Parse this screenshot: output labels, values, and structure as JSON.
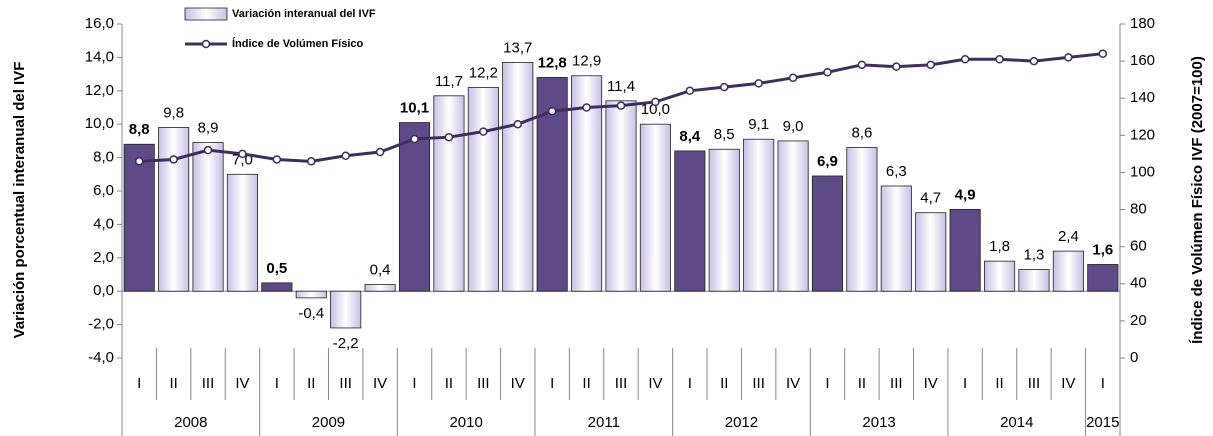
{
  "chart_data": {
    "type": "bar",
    "y_label": "Variación porcentual interanual del IVF",
    "y2_label": "Índice de Volúmen Físico IVF (2007=100)",
    "groups": [
      {
        "name": "2008",
        "categories": [
          "I",
          "II",
          "III",
          "IV"
        ]
      },
      {
        "name": "2009",
        "categories": [
          "I",
          "II",
          "III",
          "IV"
        ]
      },
      {
        "name": "2010",
        "categories": [
          "I",
          "II",
          "III",
          "IV"
        ]
      },
      {
        "name": "2011",
        "categories": [
          "I",
          "II",
          "III",
          "IV"
        ]
      },
      {
        "name": "2012",
        "categories": [
          "I",
          "II",
          "III",
          "IV"
        ]
      },
      {
        "name": "2013",
        "categories": [
          "I",
          "II",
          "III",
          "IV"
        ]
      },
      {
        "name": "2014",
        "categories": [
          "I",
          "II",
          "III",
          "IV"
        ]
      },
      {
        "name": "2015",
        "categories": [
          "I"
        ]
      }
    ],
    "series": [
      {
        "name": "Variación interanual del IVF",
        "type": "bar",
        "colors": [
          "#5e4a87",
          "#c9c0e6",
          "#c9c0e6",
          "#c9c0e6",
          "#5e4a87",
          "#c9c0e6",
          "#c9c0e6",
          "#c9c0e6",
          "#5e4a87",
          "#c9c0e6",
          "#c9c0e6",
          "#c9c0e6",
          "#5e4a87",
          "#c9c0e6",
          "#c9c0e6",
          "#c9c0e6",
          "#5e4a87",
          "#c9c0e6",
          "#c9c0e6",
          "#c9c0e6",
          "#5e4a87",
          "#c9c0e6",
          "#c9c0e6",
          "#c9c0e6",
          "#5e4a87",
          "#c9c0e6",
          "#c9c0e6",
          "#c9c0e6",
          "#5e4a87"
        ],
        "values": [
          8.8,
          9.8,
          8.9,
          7.0,
          0.5,
          -0.4,
          -2.2,
          0.4,
          10.1,
          11.7,
          12.2,
          13.7,
          12.8,
          12.9,
          11.4,
          10.0,
          8.4,
          8.5,
          9.1,
          9.0,
          6.9,
          8.6,
          6.3,
          4.7,
          4.9,
          1.8,
          1.3,
          2.4,
          1.6
        ],
        "value_labels": [
          "8,8",
          "9,8",
          "8,9",
          "7,0",
          "0,5",
          "-0,4",
          "-2,2",
          "0,4",
          "10,1",
          "11,7",
          "12,2",
          "13,7",
          "12,8",
          "12,9",
          "11,4",
          "10,0",
          "8,4",
          "8,5",
          "9,1",
          "9,0",
          "6,9",
          "8,6",
          "6,3",
          "4,7",
          "4,9",
          "1,8",
          "1,3",
          "2,4",
          "1,6"
        ]
      },
      {
        "name": "Índice de Volúmen Físico",
        "type": "line",
        "axis": "y2",
        "color": "#3f2d5f",
        "values": [
          106,
          107,
          112,
          110,
          107,
          106,
          109,
          111,
          118,
          119,
          122,
          126,
          133,
          135,
          136,
          138,
          144,
          146,
          148,
          151,
          154,
          158,
          157,
          158,
          161,
          161,
          160,
          162,
          164
        ]
      }
    ],
    "ylim": [
      -4,
      16
    ],
    "yticks": [
      {
        "value": -4,
        "label": "-4,0"
      },
      {
        "value": -2,
        "label": "-2,0"
      },
      {
        "value": 0,
        "label": "0,0"
      },
      {
        "value": 2,
        "label": "2,0"
      },
      {
        "value": 4,
        "label": "4,0"
      },
      {
        "value": 6,
        "label": "6,0"
      },
      {
        "value": 8,
        "label": "8,0"
      },
      {
        "value": 10,
        "label": "10,0"
      },
      {
        "value": 12,
        "label": "12,0"
      },
      {
        "value": 14,
        "label": "14,0"
      },
      {
        "value": 16,
        "label": "16,0"
      }
    ],
    "y2lim": [
      0,
      180
    ],
    "y2ticks": [
      0,
      20,
      40,
      60,
      80,
      100,
      120,
      140,
      160,
      180
    ]
  }
}
